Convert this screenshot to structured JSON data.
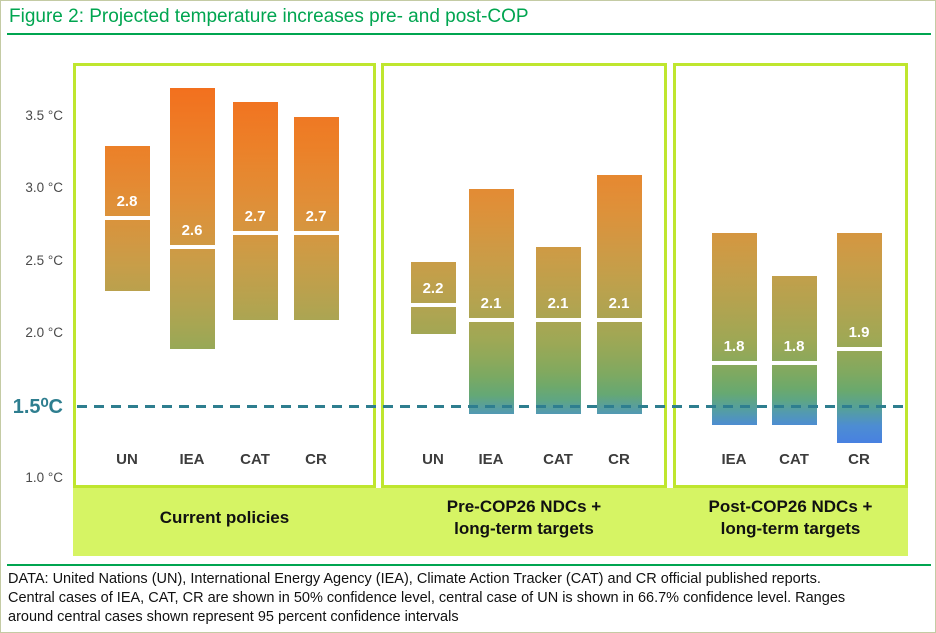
{
  "title": "Figure 2: Projected temperature increases pre- and post-COP",
  "y_axis": {
    "ticks": [
      {
        "t": 3.5,
        "label": "3.5 °C"
      },
      {
        "t": 3.0,
        "label": "3.0 °C"
      },
      {
        "t": 2.5,
        "label": "2.5 °C"
      },
      {
        "t": 2.0,
        "label": "2.0 °C"
      },
      {
        "t": 1.0,
        "label": "1.0 °C"
      }
    ],
    "threshold_value": 1.5,
    "threshold_label": "1.5⁰C"
  },
  "chart_data": {
    "type": "range-bar",
    "ylabel": "°C",
    "ylim": [
      1.0,
      3.8
    ],
    "threshold": 1.5,
    "legend_position": "none",
    "panels": [
      {
        "label": "Current policies",
        "bars": [
          {
            "name": "UN",
            "low": 2.3,
            "high": 3.3,
            "central": 2.8,
            "central_label": "2.8"
          },
          {
            "name": "IEA",
            "low": 1.9,
            "high": 3.7,
            "central": 2.6,
            "central_label": "2.6"
          },
          {
            "name": "CAT",
            "low": 2.1,
            "high": 3.6,
            "central": 2.7,
            "central_label": "2.7"
          },
          {
            "name": "CR",
            "low": 2.1,
            "high": 3.5,
            "central": 2.7,
            "central_label": "2.7"
          }
        ]
      },
      {
        "label": "Pre-COP26 NDCs +\nlong-term targets",
        "bars": [
          {
            "name": "UN",
            "low": 2.0,
            "high": 2.5,
            "central": 2.2,
            "central_label": "2.2"
          },
          {
            "name": "IEA",
            "low": 1.45,
            "high": 3.0,
            "central": 2.1,
            "central_label": "2.1"
          },
          {
            "name": "CAT",
            "low": 1.45,
            "high": 2.6,
            "central": 2.1,
            "central_label": "2.1"
          },
          {
            "name": "CR",
            "low": 1.45,
            "high": 3.1,
            "central": 2.1,
            "central_label": "2.1"
          }
        ]
      },
      {
        "label": "Post-COP26 NDCs +\nlong-term targets",
        "bars": [
          {
            "name": "IEA",
            "low": 1.37,
            "high": 2.7,
            "central": 1.8,
            "central_label": "1.8"
          },
          {
            "name": "CAT",
            "low": 1.37,
            "high": 2.4,
            "central": 1.8,
            "central_label": "1.8"
          },
          {
            "name": "CR",
            "low": 1.25,
            "high": 2.7,
            "central": 1.9,
            "central_label": "1.9"
          }
        ]
      }
    ]
  },
  "caption_lines": [
    "DATA: United Nations (UN), International Energy Agency (IEA), Climate Action Tracker (CAT) and CR official published reports.",
    "Central cases of IEA, CAT, CR are shown in 50% confidence level, central case of UN is shown in 66.7% confidence level. Ranges",
    "around central cases shown represent 95 percent confidence intervals"
  ],
  "colors": {
    "title_green": "#00A550",
    "teal": "#2e7e8f",
    "panel_border": "#bfe62e",
    "band_fill": "#d6f464",
    "gradient_high_orange": "#f46c1c",
    "gradient_mid_olive": "#a8a551",
    "gradient_green": "#68a96e",
    "gradient_low_blue": "#4a86dd",
    "axis_text": "#4a4a4a"
  }
}
